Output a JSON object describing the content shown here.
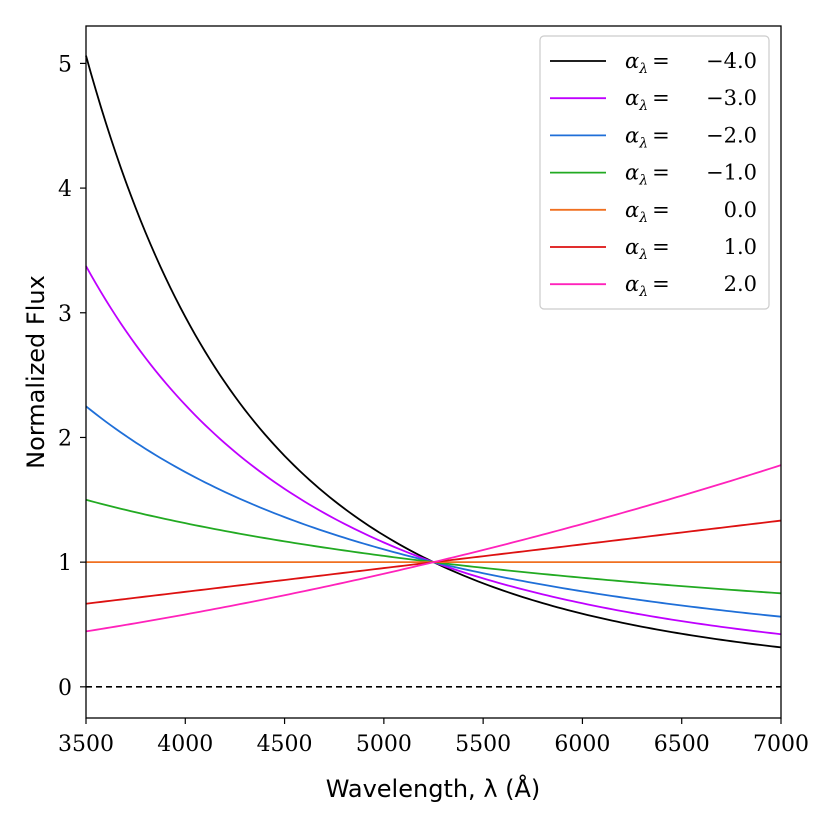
{
  "chart_data": {
    "type": "line",
    "xlabel": "Wavelength, λ (Å)",
    "ylabel": "Normalized Flux",
    "xlim": [
      3500,
      7000
    ],
    "ylim": [
      -0.25,
      5.3
    ],
    "xticks": [
      3500,
      4000,
      4500,
      5000,
      5500,
      6000,
      6500,
      7000
    ],
    "yticks": [
      0,
      1,
      2,
      3,
      4,
      5
    ],
    "x_tick_labels": [
      "3500",
      "4000",
      "4500",
      "5000",
      "5500",
      "6000",
      "6500",
      "7000"
    ],
    "y_tick_labels": [
      "0",
      "1",
      "2",
      "3",
      "4",
      "5"
    ],
    "normalization_wavelength": 5250,
    "x": [
      3500,
      3750,
      4000,
      4250,
      4500,
      4750,
      5000,
      5250,
      5500,
      5750,
      6000,
      6250,
      6500,
      6750,
      7000
    ],
    "series": [
      {
        "name": "α_λ = −4.0",
        "alpha": -4.0,
        "color": "#000000",
        "legend_math": "α",
        "legend_sub": "λ",
        "legend_eq": "=",
        "legend_value": "−4.0",
        "values": [
          5.06,
          3.84,
          2.96,
          2.33,
          1.86,
          1.49,
          1.22,
          1.0,
          0.83,
          0.69,
          0.59,
          0.5,
          0.43,
          0.37,
          0.32
        ]
      },
      {
        "name": "α_λ = −3.0",
        "alpha": -3.0,
        "color": "#bf00ff",
        "legend_math": "α",
        "legend_sub": "λ",
        "legend_eq": "=",
        "legend_value": "−3.0",
        "values": [
          3.38,
          2.74,
          2.26,
          1.88,
          1.59,
          1.35,
          1.16,
          1.0,
          0.87,
          0.76,
          0.67,
          0.59,
          0.53,
          0.47,
          0.42
        ]
      },
      {
        "name": "α_λ = −2.0",
        "alpha": -2.0,
        "color": "#1f6fd8",
        "legend_math": "α",
        "legend_sub": "λ",
        "legend_eq": "=",
        "legend_value": "−2.0",
        "values": [
          2.25,
          1.96,
          1.72,
          1.53,
          1.36,
          1.22,
          1.1,
          1.0,
          0.91,
          0.83,
          0.77,
          0.71,
          0.65,
          0.6,
          0.56
        ]
      },
      {
        "name": "α_λ = −1.0",
        "alpha": -1.0,
        "color": "#22aa22",
        "legend_math": "α",
        "legend_sub": "λ",
        "legend_eq": "=",
        "legend_value": "−1.0",
        "values": [
          1.5,
          1.4,
          1.31,
          1.24,
          1.17,
          1.11,
          1.05,
          1.0,
          0.95,
          0.91,
          0.88,
          0.84,
          0.81,
          0.78,
          0.75
        ]
      },
      {
        "name": "α_λ = 0.0",
        "alpha": 0.0,
        "color": "#f07020",
        "legend_math": "α",
        "legend_sub": "λ",
        "legend_eq": "=",
        "legend_value": "0.0",
        "values": [
          1.0,
          1.0,
          1.0,
          1.0,
          1.0,
          1.0,
          1.0,
          1.0,
          1.0,
          1.0,
          1.0,
          1.0,
          1.0,
          1.0,
          1.0
        ]
      },
      {
        "name": "α_λ = 1.0",
        "alpha": 1.0,
        "color": "#dd1111",
        "legend_math": "α",
        "legend_sub": "λ",
        "legend_eq": "=",
        "legend_value": "1.0",
        "values": [
          0.67,
          0.71,
          0.76,
          0.81,
          0.86,
          0.9,
          0.95,
          1.0,
          1.05,
          1.1,
          1.14,
          1.19,
          1.24,
          1.29,
          1.33
        ]
      },
      {
        "name": "α_λ = 2.0",
        "alpha": 2.0,
        "color": "#ff22bb",
        "legend_math": "α",
        "legend_sub": "λ",
        "legend_eq": "=",
        "legend_value": "2.0",
        "values": [
          0.44,
          0.51,
          0.58,
          0.66,
          0.73,
          0.82,
          0.91,
          1.0,
          1.1,
          1.2,
          1.31,
          1.42,
          1.53,
          1.65,
          1.78
        ]
      }
    ],
    "reference_line": {
      "y": 0,
      "style": "dashed",
      "color": "#000000"
    },
    "legend_position": "top-right",
    "grid": false
  }
}
